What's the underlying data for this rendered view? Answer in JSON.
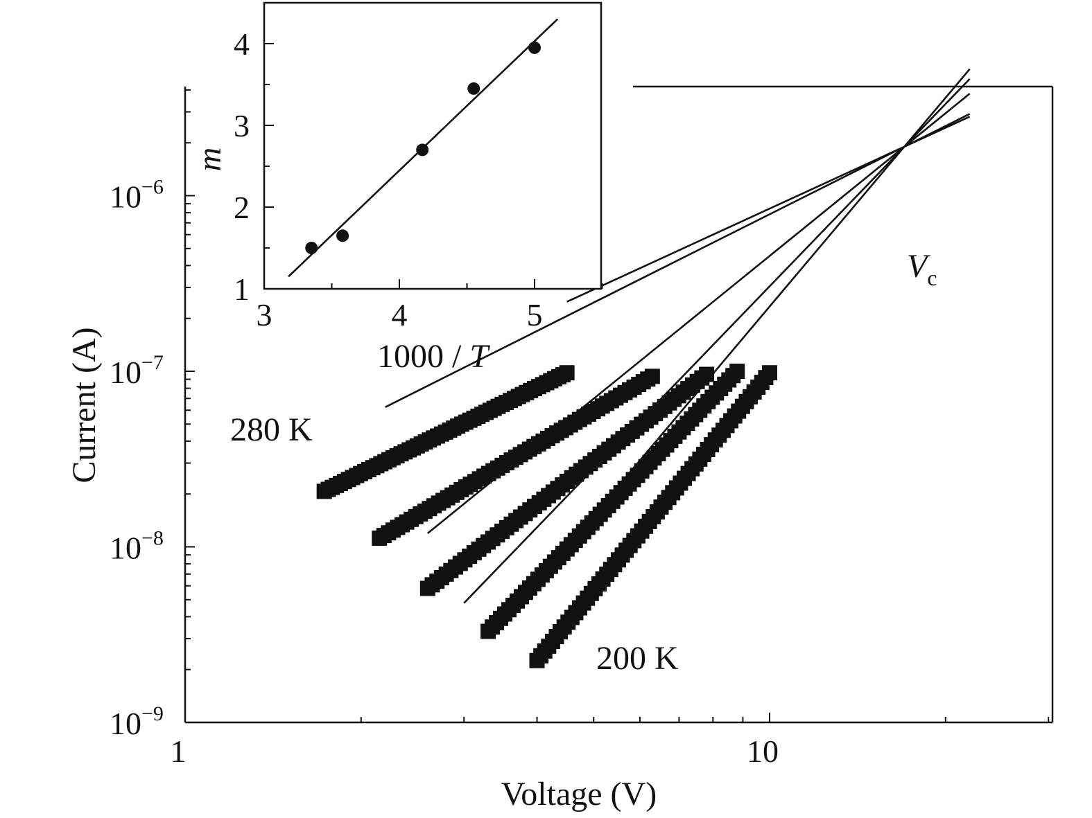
{
  "chart_data": [
    {
      "type": "scatter",
      "xlabel": "Voltage (V)",
      "ylabel": "Current (A)",
      "xscale": "log",
      "yscale": "log",
      "xlim": [
        1,
        30
      ],
      "ylim": [
        1e-09,
        5e-06
      ],
      "x_ticks": [
        {
          "value": 1,
          "label": "1"
        },
        {
          "value": 10,
          "label": "10"
        }
      ],
      "y_ticks": [
        {
          "value": 1e-09,
          "base": "10",
          "exp": "−9"
        },
        {
          "value": 1e-08,
          "base": "10",
          "exp": "−8"
        },
        {
          "value": 1e-07,
          "base": "10",
          "exp": "−7"
        },
        {
          "value": 1e-06,
          "base": "10",
          "exp": "−6"
        }
      ],
      "annotations": {
        "t_high": "280 K",
        "t_low": "200 K",
        "vc_main": "V",
        "vc_sub": "c"
      },
      "crossing_point": {
        "x": 17.0,
        "y": 1.9e-06
      },
      "series": [
        {
          "data_range": [
            1.73,
            4.5
          ],
          "current_range": [
            2.07e-08,
            9.8e-08
          ],
          "exponent": 1.53,
          "fit_range": [
            4.5,
            22.0
          ]
        },
        {
          "data_range": [
            2.15,
            6.3
          ],
          "current_range": [
            1.12e-08,
            9.35e-08
          ],
          "exponent": 1.67,
          "fit_range": [
            2.2,
            22.0
          ]
        },
        {
          "data_range": [
            2.6,
            7.8
          ],
          "current_range": [
            5.8e-09,
            9.6e-08
          ],
          "exponent": 2.7,
          "fit_range": [
            2.6,
            22.0
          ]
        },
        {
          "data_range": [
            3.3,
            8.8
          ],
          "current_range": [
            3.3e-09,
            1e-07
          ],
          "exponent": 3.45,
          "fit_range": [
            3.0,
            22.0
          ]
        },
        {
          "data_range": [
            4.0,
            10.0
          ],
          "current_range": [
            2.25e-09,
            9.8e-08
          ],
          "exponent": 3.95,
          "fit_range": [
            3.7,
            22.0
          ]
        }
      ]
    },
    {
      "type": "scatter",
      "xlabel_main": "1000 / ",
      "xlabel_var": "T",
      "ylabel": "m",
      "xlim": [
        3,
        5.5
      ],
      "ylim": [
        1,
        4.5
      ],
      "x_ticks": [
        3,
        4,
        5
      ],
      "y_ticks": [
        1,
        2,
        3,
        4
      ],
      "points": [
        {
          "x": 3.35,
          "y": 1.5
        },
        {
          "x": 3.58,
          "y": 1.65
        },
        {
          "x": 4.17,
          "y": 2.7
        },
        {
          "x": 4.55,
          "y": 3.45
        },
        {
          "x": 5.0,
          "y": 3.95
        }
      ],
      "fit_line": {
        "x0": 3.18,
        "y0": 1.15,
        "x1": 5.17,
        "y1": 4.3
      }
    }
  ]
}
